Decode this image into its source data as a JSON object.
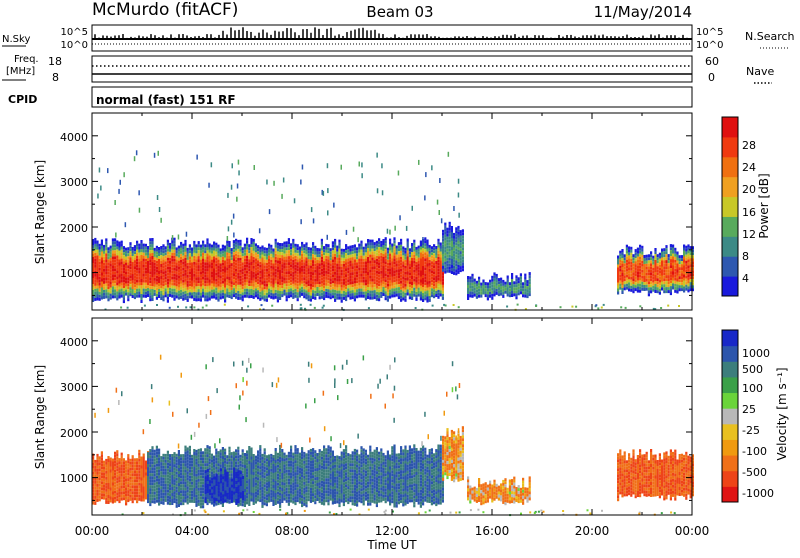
{
  "header": {
    "station": "McMurdo (fitACF)",
    "beam": "Beam 03",
    "date": "11/May/2014"
  },
  "top_panels": {
    "nsky_label": "N.Sky",
    "nsky_ticks": [
      "10^5",
      "10^0"
    ],
    "nsearch_label": "N.Search",
    "nsearch_ticks": [
      "10^5",
      "10^0"
    ],
    "freq_label": "Freq.",
    "freq_unit": "[MHz]",
    "freq_ticks": [
      "18",
      "8"
    ],
    "nave_label": "Nave",
    "nave_ticks": [
      "60",
      "0"
    ],
    "cpid_label": "CPID",
    "cpid_text": "normal (fast) 151 RF"
  },
  "colors": {
    "power": [
      "#1a1adc",
      "#2e58b0",
      "#3c8a86",
      "#58aa5c",
      "#c8c828",
      "#f0a020",
      "#f07010",
      "#f03a10",
      "#e01010"
    ],
    "velocity": [
      "#1828c8",
      "#2c55ac",
      "#3c7e7c",
      "#3aa048",
      "#6ad43a",
      "#b8b8b8",
      "#e8c020",
      "#f09a10",
      "#f07018",
      "#ee4418",
      "#e01414"
    ]
  },
  "chart_data": [
    {
      "type": "heatmap",
      "name": "power",
      "ylabel": "Slant Range [km]",
      "ylim": [
        180,
        4500
      ],
      "yticks": [
        "1000",
        "2000",
        "3000",
        "4000"
      ],
      "xlim": [
        0,
        24
      ],
      "colorbar": {
        "label": "Power [dB]",
        "range": [
          0,
          32
        ],
        "ticks": [
          "4",
          "8",
          "12",
          "16",
          "20",
          "24",
          "28"
        ]
      },
      "echo_regions": [
        {
          "t_start": 0.0,
          "t_end": 14.0,
          "range_low": 450,
          "range_high": 1650,
          "core_power": 28
        },
        {
          "t_start": 14.0,
          "t_end": 14.8,
          "range_low": 1000,
          "range_high": 2000,
          "core_power": 10
        },
        {
          "t_start": 15.0,
          "t_end": 17.5,
          "range_low": 500,
          "range_high": 900,
          "core_power": 10
        },
        {
          "t_start": 21.0,
          "t_end": 24.0,
          "range_low": 600,
          "range_high": 1500,
          "core_power": 26
        }
      ]
    },
    {
      "type": "heatmap",
      "name": "velocity",
      "ylabel": "Slant Range [km]",
      "ylim": [
        180,
        4500
      ],
      "yticks": [
        "1000",
        "2000",
        "3000",
        "4000"
      ],
      "xlabel": "Time UT",
      "xlim": [
        0,
        24
      ],
      "xticks": [
        "00:00",
        "04:00",
        "08:00",
        "12:00",
        "16:00",
        "20:00",
        "00:00"
      ],
      "colorbar": {
        "label": "Velocity [m s⁻¹]",
        "ticks": [
          "1000",
          "500",
          "100",
          "25",
          "-25",
          "-100",
          "-500",
          "-1000"
        ]
      },
      "echo_regions": [
        {
          "t_start": 0.0,
          "t_end": 2.2,
          "range_low": 500,
          "range_high": 1500,
          "velocity": -300
        },
        {
          "t_start": 2.2,
          "t_end": 14.0,
          "range_low": 450,
          "range_high": 1600,
          "velocity": 300
        },
        {
          "t_start": 4.5,
          "t_end": 6.0,
          "range_low": 500,
          "range_high": 1100,
          "velocity": 800
        },
        {
          "t_start": 14.0,
          "t_end": 14.8,
          "range_low": 1000,
          "range_high": 2000,
          "velocity": -100
        },
        {
          "t_start": 15.0,
          "t_end": 17.5,
          "range_low": 500,
          "range_high": 900,
          "velocity": -100
        },
        {
          "t_start": 21.0,
          "t_end": 24.0,
          "range_low": 600,
          "range_high": 1500,
          "velocity": -300
        }
      ]
    }
  ]
}
